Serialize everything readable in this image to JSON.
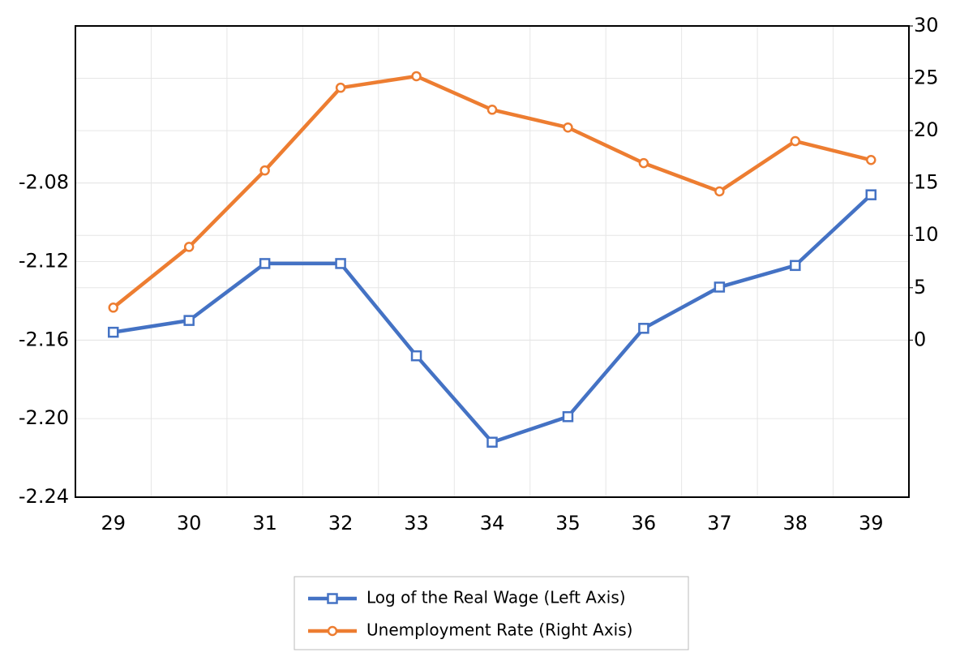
{
  "chart_data": {
    "type": "line",
    "categories": [
      "29",
      "30",
      "31",
      "32",
      "33",
      "34",
      "35",
      "36",
      "37",
      "38",
      "39"
    ],
    "series": [
      {
        "name": "Log of the Real Wage (Left Axis)",
        "color": "#4472c4",
        "marker": "square",
        "values": [
          -2.156,
          -2.15,
          -2.121,
          -2.121,
          -2.168,
          -2.212,
          -2.199,
          -2.154,
          -2.133,
          -2.122,
          -2.086
        ]
      },
      {
        "name": "Unemployment Rate (Right Axis)",
        "color": "#ed7d31",
        "marker": "circle",
        "axis": "y2",
        "values": [
          3.1,
          8.9,
          16.2,
          24.1,
          25.2,
          22.0,
          20.3,
          16.9,
          14.2,
          19.0,
          17.2
        ]
      }
    ],
    "ylim": [
      -2.24,
      -2.0
    ],
    "yticks": [
      {
        "value": -2.24,
        "label": "-2.24"
      },
      {
        "value": -2.2,
        "label": "-2.20"
      },
      {
        "value": -2.16,
        "label": "-2.16"
      },
      {
        "value": -2.12,
        "label": "-2.12"
      },
      {
        "value": -2.08,
        "label": "-2.08"
      }
    ],
    "y2lim": [
      -15,
      30
    ],
    "y2ticks": [
      0,
      5,
      10,
      15,
      20,
      25,
      30
    ],
    "grid": true,
    "legend": "bottom"
  }
}
